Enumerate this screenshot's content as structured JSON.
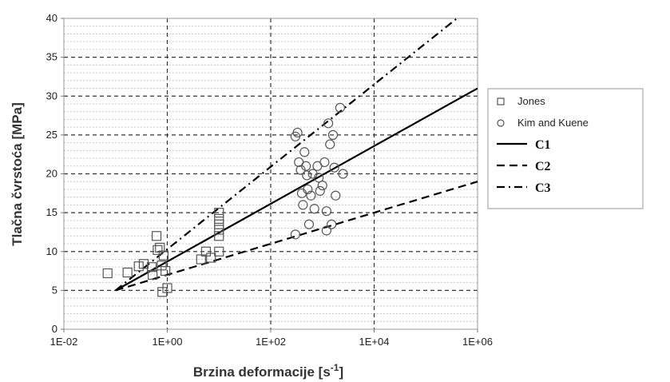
{
  "chart_data": {
    "type": "scatter",
    "xlabel": "Brzina deformacije [s",
    "xlabel_sup": "-1",
    "xlabel_end": "]",
    "ylabel": "Tlačna čvrstoća [MPa]",
    "x_scale": "log",
    "xlim": [
      0.01,
      1000000
    ],
    "ylim": [
      0,
      40
    ],
    "x_ticks": [
      0.01,
      1,
      100,
      10000,
      1000000
    ],
    "x_tick_labels": [
      "1E-02",
      "1E+00",
      "1E+02",
      "1E+04",
      "1E+06"
    ],
    "y_ticks": [
      0,
      5,
      10,
      15,
      20,
      25,
      30,
      35,
      40
    ],
    "y_tick_labels": [
      "0",
      "5",
      "10",
      "15",
      "20",
      "25",
      "30",
      "35",
      "40"
    ],
    "grid": true,
    "legend_position": "right",
    "series": [
      {
        "name": "Jones",
        "kind": "points",
        "marker": "square",
        "points": [
          [
            0.07,
            7.2
          ],
          [
            0.17,
            7.3
          ],
          [
            0.28,
            8.1
          ],
          [
            0.35,
            8.4
          ],
          [
            0.5,
            8.0
          ],
          [
            0.52,
            7.0
          ],
          [
            0.62,
            12.0
          ],
          [
            0.65,
            10.2
          ],
          [
            0.72,
            10.5
          ],
          [
            0.78,
            8.2
          ],
          [
            0.8,
            4.8
          ],
          [
            0.85,
            9.5
          ],
          [
            0.92,
            7.5
          ],
          [
            1.0,
            5.3
          ],
          [
            4.5,
            9.0
          ],
          [
            5.6,
            10.0
          ],
          [
            7.0,
            9.2
          ],
          [
            10.0,
            10.0
          ],
          [
            10.0,
            12.0
          ],
          [
            10.0,
            12.8
          ],
          [
            10.0,
            13.5
          ],
          [
            10.0,
            14.2
          ],
          [
            10.0,
            15.0
          ]
        ]
      },
      {
        "name": "Kim and Kuene",
        "kind": "points",
        "marker": "circle",
        "points": [
          [
            300,
            24.8
          ],
          [
            330,
            25.3
          ],
          [
            300,
            12.2
          ],
          [
            350,
            21.5
          ],
          [
            380,
            20.5
          ],
          [
            400,
            17.5
          ],
          [
            420,
            16.0
          ],
          [
            450,
            22.8
          ],
          [
            480,
            21.0
          ],
          [
            500,
            19.8
          ],
          [
            520,
            18.0
          ],
          [
            550,
            13.5
          ],
          [
            600,
            17.2
          ],
          [
            650,
            20.0
          ],
          [
            700,
            15.5
          ],
          [
            800,
            21.0
          ],
          [
            850,
            19.5
          ],
          [
            900,
            17.8
          ],
          [
            1000,
            18.5
          ],
          [
            1100,
            21.5
          ],
          [
            1200,
            15.2
          ],
          [
            1200,
            12.7
          ],
          [
            1300,
            26.5
          ],
          [
            1400,
            23.8
          ],
          [
            1500,
            13.5
          ],
          [
            1600,
            25.0
          ],
          [
            1700,
            20.8
          ],
          [
            1800,
            17.2
          ],
          [
            2200,
            28.5
          ],
          [
            2500,
            20.0
          ]
        ]
      },
      {
        "name": "C1",
        "kind": "line",
        "dash": "solid",
        "points": [
          [
            0.1,
            5.0
          ],
          [
            1000000,
            31.0
          ]
        ]
      },
      {
        "name": "C2",
        "kind": "line",
        "dash": "dashed",
        "points": [
          [
            0.1,
            5.0
          ],
          [
            1000000,
            19.0
          ]
        ]
      },
      {
        "name": "C3",
        "kind": "line",
        "dash": "dashdot",
        "points": [
          [
            0.1,
            5.0
          ],
          [
            400000,
            40.0
          ]
        ]
      }
    ]
  }
}
